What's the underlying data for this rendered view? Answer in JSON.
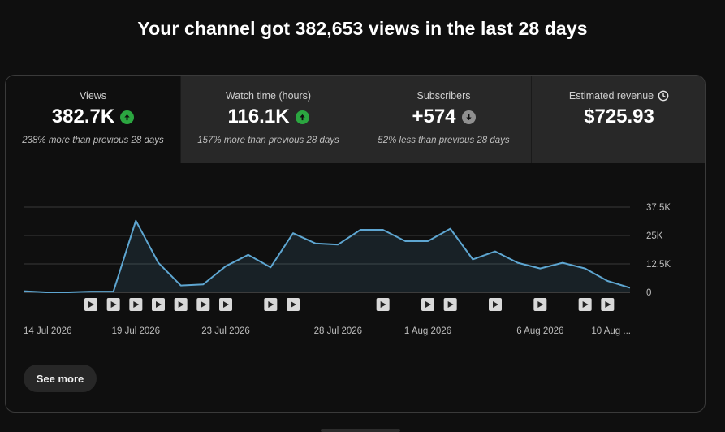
{
  "headline": "Your channel got 382,653 views in the last 28 days",
  "tabs": [
    {
      "label": "Views",
      "value": "382.7K",
      "trend": "up",
      "note": "238% more than previous 28 days"
    },
    {
      "label": "Watch time (hours)",
      "value": "116.1K",
      "trend": "up",
      "note": "157% more than previous 28 days"
    },
    {
      "label": "Subscribers",
      "value": "+574",
      "trend": "down",
      "note": "52% less than previous 28 days"
    },
    {
      "label": "Estimated revenue",
      "value": "$725.93",
      "trend": "none",
      "note": ""
    }
  ],
  "icons": {
    "trend_up": "arrow-up-circle-icon",
    "trend_down": "arrow-down-circle-icon",
    "revenue": "clock-icon",
    "marker": "play-icon"
  },
  "colors": {
    "line": "#5ea6d1",
    "up": "#2ba640",
    "down": "#909090",
    "background": "#0f0f0f",
    "tab_bg": "#282828"
  },
  "see_more_label": "See more",
  "chart_data": {
    "type": "area",
    "x": [
      "14 Jul",
      "15 Jul",
      "16 Jul",
      "17 Jul",
      "18 Jul",
      "19 Jul",
      "20 Jul",
      "21 Jul",
      "22 Jul",
      "23 Jul",
      "24 Jul",
      "25 Jul",
      "26 Jul",
      "27 Jul",
      "28 Jul",
      "29 Jul",
      "30 Jul",
      "31 Jul",
      "1 Aug",
      "2 Aug",
      "3 Aug",
      "4 Aug",
      "5 Aug",
      "6 Aug",
      "7 Aug",
      "8 Aug",
      "9 Aug",
      "10 Aug"
    ],
    "values": [
      500,
      0,
      0,
      300,
      300,
      31500,
      13000,
      3000,
      3500,
      11500,
      16500,
      11000,
      26000,
      21500,
      21000,
      27500,
      27500,
      22500,
      22500,
      28000,
      14500,
      18000,
      13000,
      10500,
      13000,
      10500,
      5000,
      2000
    ],
    "series_name": "Views",
    "yticks": [
      0,
      12500,
      25000,
      37500
    ],
    "ytick_labels": [
      "0",
      "12.5K",
      "25K",
      "37.5K"
    ],
    "ylim": [
      0,
      37500
    ],
    "xtick_labels": [
      {
        "index": 0,
        "label": "14 Jul 2026"
      },
      {
        "index": 5,
        "label": "19 Jul 2026"
      },
      {
        "index": 9,
        "label": "23 Jul 2026"
      },
      {
        "index": 14,
        "label": "28 Jul 2026"
      },
      {
        "index": 18,
        "label": "1 Aug 2026"
      },
      {
        "index": 23,
        "label": "6 Aug 2026"
      },
      {
        "index": 27,
        "label": "10 Aug ..."
      }
    ],
    "video_markers": [
      3,
      4,
      5,
      6,
      7,
      8,
      9,
      11,
      12,
      16,
      18,
      19,
      21,
      23,
      25,
      26
    ],
    "grid": true
  }
}
